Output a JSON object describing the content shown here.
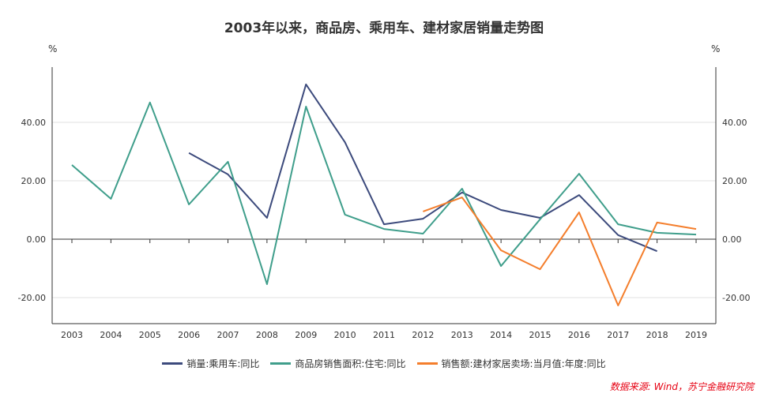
{
  "chart_data": {
    "type": "line",
    "title": "2003年以来，商品房、乘用车、建材家居销量走势图",
    "ylabel_left": "%",
    "ylabel_right": "%",
    "categories": [
      "2003",
      "2004",
      "2005",
      "2006",
      "2007",
      "2008",
      "2009",
      "2010",
      "2011",
      "2012",
      "2013",
      "2014",
      "2015",
      "2016",
      "2017",
      "2018",
      "2019"
    ],
    "ylim": [
      -29,
      59
    ],
    "yticks": [
      -20,
      0,
      20,
      40
    ],
    "ytick_labels": [
      "-20.00",
      "0.00",
      "20.00",
      "40.00"
    ],
    "grid": true,
    "legend_position": "bottom",
    "series": [
      {
        "name": "销量:乘用车:同比",
        "color": "#3c4a7c",
        "values": [
          null,
          null,
          null,
          29.5,
          22.2,
          7.3,
          53.0,
          33.2,
          5.1,
          7.0,
          16.0,
          10.0,
          7.3,
          15.1,
          1.4,
          -4.1,
          null
        ]
      },
      {
        "name": "商品房销售面积:住宅:同比",
        "color": "#3f9e8b",
        "values": [
          25.4,
          13.8,
          46.8,
          11.9,
          26.5,
          -15.4,
          45.4,
          8.4,
          3.5,
          1.9,
          17.3,
          -9.2,
          6.8,
          22.4,
          5.1,
          2.2,
          1.6
        ]
      },
      {
        "name": "销售额:建材家居卖场:当月值:年度:同比",
        "color": "#f47e2c",
        "values": [
          null,
          null,
          null,
          null,
          null,
          null,
          null,
          null,
          null,
          9.5,
          14.3,
          -3.8,
          -10.3,
          9.2,
          -22.7,
          5.7,
          3.5
        ]
      }
    ]
  },
  "source": "数据来源: Wind，苏宁金融研究院"
}
